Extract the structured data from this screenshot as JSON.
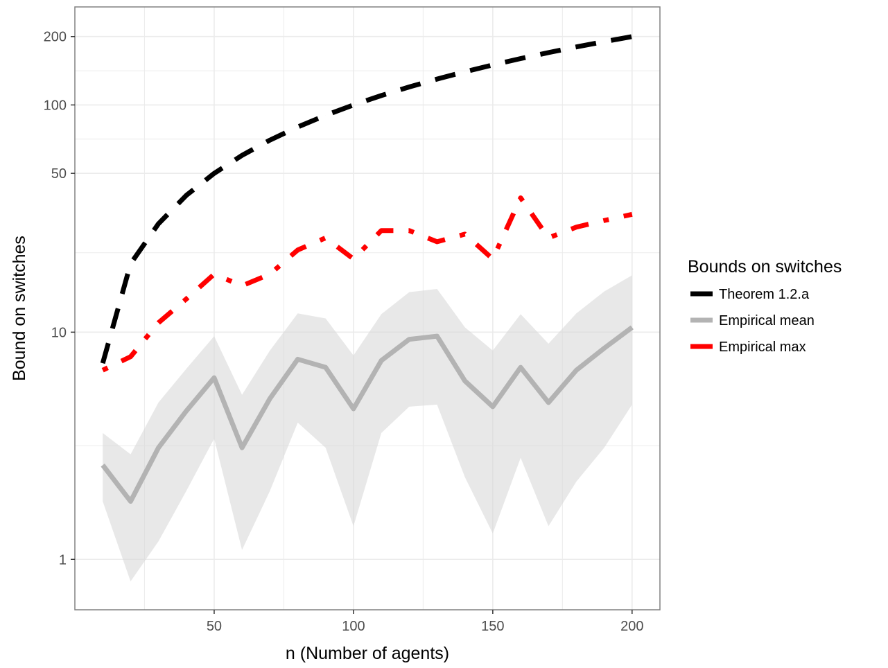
{
  "colors": {
    "theorem": "#000000",
    "mean": "#b3b3b3",
    "max": "#ff0000",
    "ribbon": "#d9d9d9",
    "grid": "#ebebeb",
    "panel_border": "#808080"
  },
  "chart_data": {
    "type": "line",
    "title": "",
    "xlabel": "n (Number of agents)",
    "ylabel": "Bound on switches",
    "x_scale": "linear",
    "y_scale": "log10",
    "xlim": [
      0,
      210
    ],
    "ylim": [
      0.6,
      270
    ],
    "x_ticks": [
      50,
      100,
      150,
      200
    ],
    "x_tick_labels": [
      "50",
      "100",
      "150",
      "200"
    ],
    "y_ticks": [
      1,
      10,
      50,
      100,
      200
    ],
    "y_tick_labels": [
      "1",
      "10",
      "50",
      "100",
      "200"
    ],
    "grid": true,
    "legend": {
      "title": "Bounds on switches",
      "position": "right"
    },
    "x": [
      10,
      20,
      30,
      40,
      50,
      60,
      70,
      80,
      90,
      100,
      110,
      120,
      130,
      140,
      150,
      160,
      170,
      180,
      190,
      200
    ],
    "series": [
      {
        "name": "Theorem 1.2.a",
        "style": "dashed",
        "values": [
          7.3,
          20,
          30,
          40,
          50,
          60,
          70,
          80,
          90,
          100,
          110,
          120,
          130,
          140,
          150,
          160,
          170,
          180,
          190,
          200
        ]
      },
      {
        "name": "Empirical mean",
        "style": "solid",
        "values": [
          2.6,
          1.8,
          3.1,
          4.5,
          6.3,
          3.1,
          5.1,
          7.6,
          7.0,
          4.6,
          7.5,
          9.3,
          9.6,
          6.1,
          4.7,
          7.0,
          4.9,
          6.8,
          8.5,
          10.5
        ],
        "ribbon_lower": [
          1.8,
          0.8,
          1.2,
          2.0,
          3.4,
          1.1,
          2.0,
          4.0,
          3.1,
          1.4,
          3.6,
          4.7,
          4.8,
          2.3,
          1.3,
          2.8,
          1.4,
          2.2,
          3.1,
          4.8
        ],
        "ribbon_upper": [
          3.6,
          2.9,
          4.9,
          6.9,
          9.6,
          5.3,
          8.3,
          12.1,
          11.5,
          7.9,
          12.0,
          15.0,
          15.5,
          10.5,
          8.3,
          12.0,
          8.9,
          12.1,
          15.1,
          17.8
        ]
      },
      {
        "name": "Empirical max",
        "style": "dotdash",
        "values": [
          6.8,
          7.8,
          11.0,
          14.0,
          18.0,
          16.0,
          18.0,
          23.0,
          26.0,
          21.0,
          28.0,
          28.0,
          25.0,
          27.0,
          21.0,
          39.0,
          26.0,
          29.0,
          31.0,
          33.0
        ]
      }
    ]
  }
}
